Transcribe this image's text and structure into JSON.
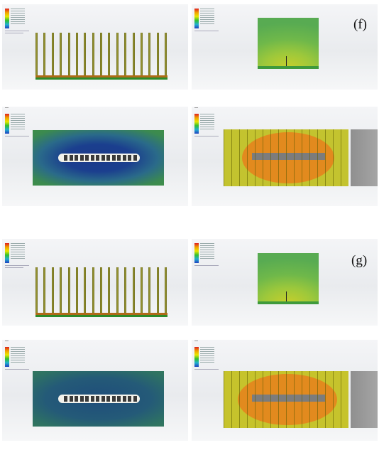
{
  "figure": {
    "label_f": "(f)",
    "label_g": "(g)"
  },
  "colors": {
    "fin": "#8a8a2a",
    "fin_base": "#b06a18",
    "ground": "#2d8a2a",
    "plate_blue": "#1e4a8a",
    "plate_green": "#3b8a50",
    "heat_orange": "#e28a1e",
    "heat_yellow": "#c9c832",
    "slot_grey": "#7c7c7c"
  },
  "icons": [
    "colorbar-legend",
    "axis-triad"
  ]
}
